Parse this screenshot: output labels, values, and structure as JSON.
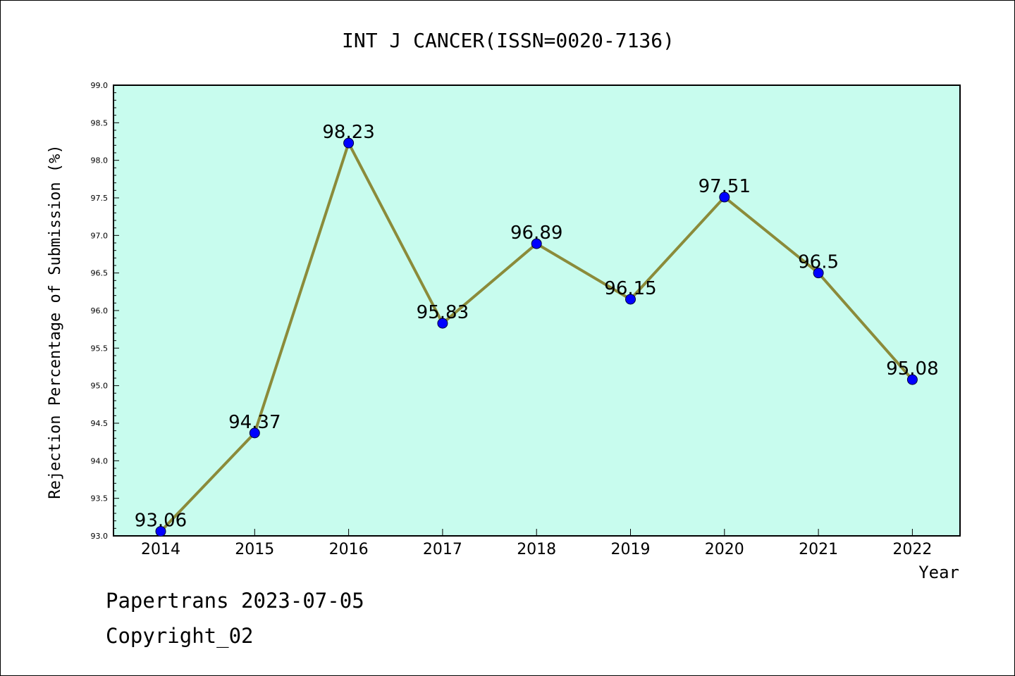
{
  "chart_data": {
    "type": "line",
    "title": "INT J CANCER(ISSN=0020-7136)",
    "xlabel": "Year",
    "ylabel": "Rejection Percentage of Submission (%)",
    "categories": [
      "2014",
      "2015",
      "2016",
      "2017",
      "2018",
      "2019",
      "2020",
      "2021",
      "2022"
    ],
    "values": [
      93.06,
      94.37,
      98.23,
      95.83,
      96.89,
      96.15,
      97.51,
      96.5,
      95.08
    ],
    "data_labels": [
      "93.06",
      "94.37",
      "98.23",
      "95.83",
      "96.89",
      "96.15",
      "97.51",
      "96.5",
      "95.08"
    ],
    "ylim": [
      93.0,
      99.0
    ],
    "yticks": [
      "93.0",
      "93.5",
      "94.0",
      "94.5",
      "95.0",
      "95.5",
      "96.0",
      "96.5",
      "97.0",
      "97.5",
      "98.0",
      "98.5",
      "99.0"
    ],
    "grid": false,
    "plot_background": "#c8fcee",
    "line_color": "#8b8b3a",
    "marker_color": "#0000ff"
  },
  "footer": {
    "date_text": "Papertrans 2023-07-05",
    "copyright_text": "Copyright_02"
  }
}
